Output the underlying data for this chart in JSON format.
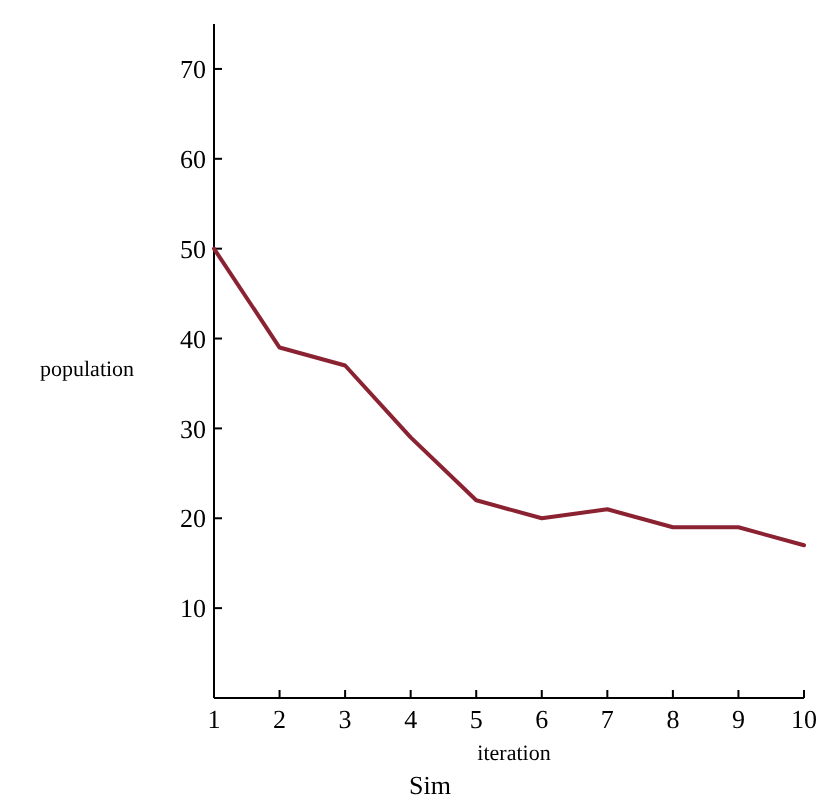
{
  "chart_data": {
    "type": "line",
    "title": "Sim",
    "xlabel": "iteration",
    "ylabel": "population",
    "x": [
      1,
      2,
      3,
      4,
      5,
      6,
      7,
      8,
      9,
      10
    ],
    "series": [
      {
        "color": "#8b2232",
        "values": [
          50,
          39,
          37,
          29,
          22,
          20,
          21,
          19,
          19,
          17
        ]
      }
    ],
    "xlim": [
      1,
      10
    ],
    "xticks": [
      1,
      2,
      3,
      4,
      5,
      6,
      7,
      8,
      9,
      10
    ],
    "ylim": [
      0,
      75
    ],
    "yticks": [
      10,
      20,
      30,
      40,
      50,
      60,
      70
    ],
    "grid": false
  }
}
